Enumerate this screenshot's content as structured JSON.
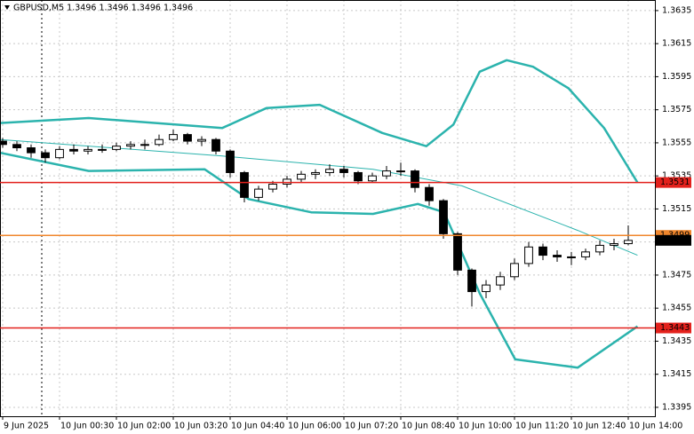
{
  "chart_data": {
    "type": "candlestick",
    "title": "GBPUSD,M5  1.3496 1.3496 1.3496 1.3496",
    "x": [
      -55,
      -35,
      -15,
      5,
      25,
      45,
      65,
      85,
      105,
      125,
      145,
      165,
      185,
      205,
      225,
      245,
      265,
      285,
      305,
      325,
      345,
      365,
      385,
      405,
      425,
      445,
      465,
      485,
      505,
      525,
      545,
      565,
      585,
      605,
      625,
      645,
      665,
      685,
      705,
      725,
      745,
      765,
      785,
      805,
      825
    ],
    "candles": [
      [
        1.3556,
        1.3558,
        1.3552,
        1.3554
      ],
      [
        1.3554,
        1.3556,
        1.355,
        1.3552
      ],
      [
        1.3552,
        1.3554,
        1.3546,
        1.3549
      ],
      [
        1.3549,
        1.3551,
        1.3543,
        1.3546
      ],
      [
        1.3546,
        1.3553,
        1.3545,
        1.3551
      ],
      [
        1.3551,
        1.3554,
        1.3548,
        1.355
      ],
      [
        1.355,
        1.3553,
        1.3548,
        1.3551
      ],
      [
        1.3551,
        1.3554,
        1.3549,
        1.3551
      ],
      [
        1.3551,
        1.3555,
        1.355,
        1.3553
      ],
      [
        1.3553,
        1.3556,
        1.3551,
        1.3554
      ],
      [
        1.3554,
        1.3557,
        1.3551,
        1.3554
      ],
      [
        1.3554,
        1.356,
        1.3553,
        1.3557
      ],
      [
        1.3557,
        1.3563,
        1.3556,
        1.356
      ],
      [
        1.356,
        1.3561,
        1.3554,
        1.3556
      ],
      [
        1.3556,
        1.3559,
        1.3553,
        1.3557
      ],
      [
        1.3557,
        1.3558,
        1.3548,
        1.355
      ],
      [
        1.355,
        1.3551,
        1.3534,
        1.3537
      ],
      [
        1.3537,
        1.3538,
        1.3519,
        1.3522
      ],
      [
        1.3522,
        1.3529,
        1.352,
        1.3527
      ],
      [
        1.3527,
        1.3532,
        1.3525,
        1.353
      ],
      [
        1.353,
        1.3535,
        1.3528,
        1.3533
      ],
      [
        1.3533,
        1.3538,
        1.3531,
        1.3536
      ],
      [
        1.3536,
        1.3539,
        1.3533,
        1.3537
      ],
      [
        1.3537,
        1.3542,
        1.3535,
        1.3539
      ],
      [
        1.3539,
        1.3541,
        1.3534,
        1.3537
      ],
      [
        1.3537,
        1.3538,
        1.353,
        1.3532
      ],
      [
        1.3532,
        1.3537,
        1.3531,
        1.3535
      ],
      [
        1.3535,
        1.3541,
        1.3533,
        1.3538
      ],
      [
        1.3538,
        1.3543,
        1.3535,
        1.3538
      ],
      [
        1.3538,
        1.3539,
        1.3525,
        1.3528
      ],
      [
        1.3528,
        1.353,
        1.3517,
        1.352
      ],
      [
        1.352,
        1.3521,
        1.3497,
        1.35
      ],
      [
        1.35,
        1.3501,
        1.3475,
        1.3478
      ],
      [
        1.3478,
        1.3479,
        1.3456,
        1.3465
      ],
      [
        1.3465,
        1.3472,
        1.3461,
        1.3469
      ],
      [
        1.3469,
        1.3477,
        1.3466,
        1.3474
      ],
      [
        1.3474,
        1.3485,
        1.3472,
        1.3482
      ],
      [
        1.3482,
        1.3495,
        1.348,
        1.3492
      ],
      [
        1.3492,
        1.3494,
        1.3484,
        1.3487
      ],
      [
        1.3487,
        1.349,
        1.3483,
        1.3486
      ],
      [
        1.3486,
        1.3489,
        1.3481,
        1.3486
      ],
      [
        1.3486,
        1.3491,
        1.3484,
        1.3489
      ],
      [
        1.3489,
        1.3496,
        1.3487,
        1.3493
      ],
      [
        1.3493,
        1.3497,
        1.349,
        1.3494
      ],
      [
        1.3494,
        1.3505,
        1.3493,
        1.3496
      ]
    ],
    "series": [
      {
        "color": "#2bb3ad",
        "line_width": 2.5,
        "x": [
          -59,
          66,
          254,
          316,
          391,
          479,
          541,
          579,
          616,
          654,
          691,
          741,
          791,
          838
        ],
        "values": [
          1.3567,
          1.357,
          1.3564,
          1.3576,
          1.3578,
          1.3561,
          1.3553,
          1.3566,
          1.3598,
          1.3605,
          1.3601,
          1.3588,
          1.3564,
          1.3531
        ]
      },
      {
        "color": "#2bb3ad",
        "line_width": 2.5,
        "x": [
          -59,
          66,
          229,
          291,
          379,
          466,
          529,
          566,
          616,
          666,
          754,
          838
        ],
        "values": [
          1.3549,
          1.3538,
          1.3539,
          1.3521,
          1.3513,
          1.3512,
          1.3518,
          1.3513,
          1.3464,
          1.3424,
          1.3419,
          1.3444
        ]
      },
      {
        "color": "#2bb3ad",
        "line_width": 1,
        "x": [
          -59,
          254,
          466,
          591,
          754,
          838
        ],
        "values": [
          1.3557,
          1.3547,
          1.3539,
          1.3529,
          1.3502,
          1.3487
        ]
      }
    ],
    "levels": [
      {
        "value": 1.3531,
        "color": "#e3211c"
      },
      {
        "value": 1.3499,
        "color": "#f0862c"
      },
      {
        "value": 1.3443,
        "color": "#e3211c"
      }
    ],
    "bid": {
      "value": 1.3496,
      "color": "#000000"
    },
    "xlim": [
      -58.75,
      862.5
    ],
    "xticks": [
      {
        "value": -55,
        "label": "9 Jun 2025"
      },
      {
        "value": 25,
        "label": "10 Jun 00:30"
      },
      {
        "value": 105,
        "label": "10 Jun 02:00"
      },
      {
        "value": 185,
        "label": "10 Jun 03:20"
      },
      {
        "value": 265,
        "label": "10 Jun 04:40"
      },
      {
        "value": 345,
        "label": "10 Jun 06:00"
      },
      {
        "value": 425,
        "label": "10 Jun 07:20"
      },
      {
        "value": 505,
        "label": "10 Jun 08:40"
      },
      {
        "value": 585,
        "label": "10 Jun 10:00"
      },
      {
        "value": 665,
        "label": "10 Jun 11:20"
      },
      {
        "value": 745,
        "label": "10 Jun 12:40"
      },
      {
        "value": 825,
        "label": "10 Jun 14:00"
      }
    ],
    "ylim": [
      1.33896,
      1.36414
    ],
    "yticks": [
      1.3635,
      1.3615,
      1.3595,
      1.3575,
      1.3555,
      1.3535,
      1.3515,
      1.3495,
      1.3475,
      1.3455,
      1.3435,
      1.3415,
      1.3395
    ],
    "grid": true
  }
}
